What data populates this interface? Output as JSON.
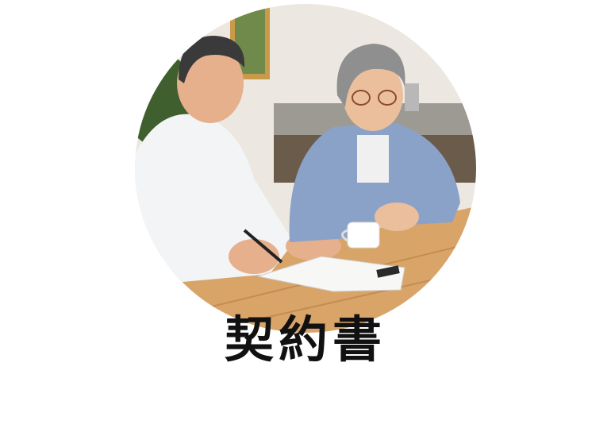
{
  "caption": "契約書",
  "photo": {
    "subject": "elderly-couple-signing-document",
    "colors": {
      "wall": "#ece8e1",
      "table": "#d9a468",
      "shirt_man": "#f3f4f6",
      "shirt_woman": "#8aa2c8",
      "skin": "#e6b08c",
      "hair_man": "#3a3a3a",
      "hair_woman": "#8f8f8f"
    }
  }
}
